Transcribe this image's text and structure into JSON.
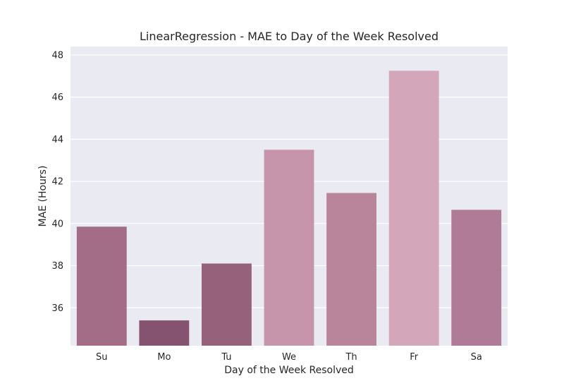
{
  "chart_data": {
    "type": "bar",
    "title": "LinearRegression - MAE to Day of the Week Resolved",
    "xlabel": "Day of the Week Resolved",
    "ylabel": "MAE (Hours)",
    "categories": [
      "Su",
      "Mo",
      "Tu",
      "We",
      "Th",
      "Fr",
      "Sa"
    ],
    "values": [
      39.85,
      35.4,
      38.1,
      43.5,
      41.45,
      47.25,
      40.65
    ],
    "colors": [
      "#a36d88",
      "#85536f",
      "#96617b",
      "#c795ab",
      "#b9859b",
      "#d3a6b9",
      "#af7b96"
    ],
    "ylim": [
      34.2,
      48.4
    ],
    "yticks": [
      36,
      38,
      40,
      42,
      44,
      46,
      48
    ],
    "grid": true,
    "background": "#eaeaf2"
  }
}
